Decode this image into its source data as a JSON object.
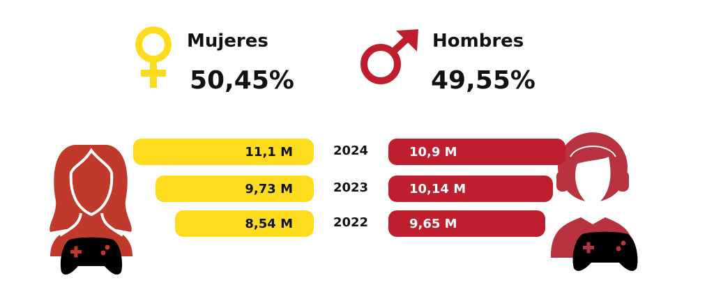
{
  "header": {
    "women": {
      "label": "Mujeres",
      "percent": "50,45%",
      "icon": "female-symbol-icon"
    },
    "men": {
      "label": "Hombres",
      "percent": "49,55%",
      "icon": "male-symbol-icon"
    }
  },
  "colors": {
    "women": "#FDDC1E",
    "men": "#BE1E2D"
  },
  "chart_data": {
    "type": "bar",
    "orientation": "horizontal-butterfly",
    "categories": [
      "2024",
      "2023",
      "2022"
    ],
    "series": [
      {
        "name": "Mujeres",
        "values": [
          11.1,
          9.73,
          8.54
        ],
        "labels": [
          "11,1 M",
          "9,73 M",
          "8,54 M"
        ]
      },
      {
        "name": "Hombres",
        "values": [
          10.9,
          10.14,
          9.65
        ],
        "labels": [
          "10,9 M",
          "10,14 M",
          "9,65 M"
        ]
      }
    ],
    "unit": "M"
  }
}
